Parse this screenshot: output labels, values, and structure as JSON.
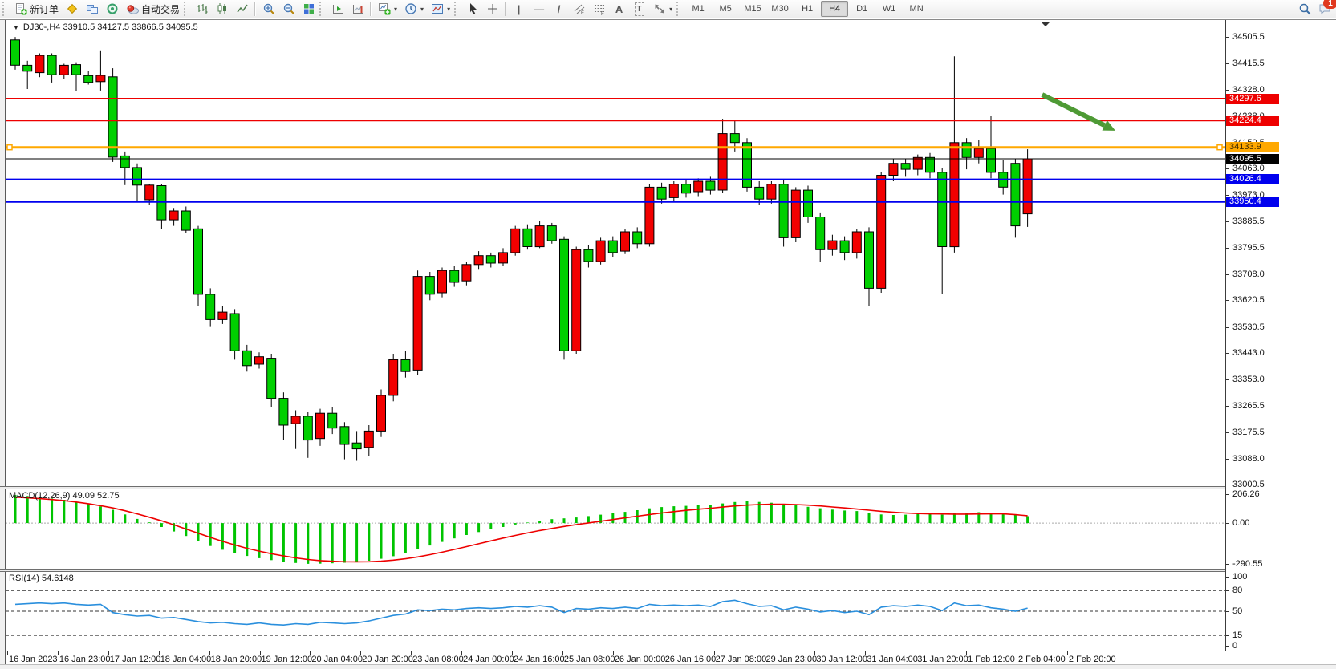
{
  "toolbar": {
    "badge": "1",
    "timeframes": [
      "M1",
      "M5",
      "M15",
      "M30",
      "H1",
      "H4",
      "D1",
      "W1",
      "MN"
    ],
    "active_timeframe": "H4",
    "items": [
      {
        "type": "grip"
      },
      {
        "type": "button",
        "name": "new-order-button",
        "icon": "new-order",
        "label": "新订单"
      },
      {
        "type": "button",
        "name": "market-watch-button",
        "icon": "market-watch"
      },
      {
        "type": "button",
        "name": "navigator-button",
        "icon": "navigator"
      },
      {
        "type": "button",
        "name": "strategy-tester-button",
        "icon": "tester"
      },
      {
        "type": "button",
        "name": "auto-trading-button",
        "icon": "auto-trading",
        "label": "自动交易"
      },
      {
        "type": "grip"
      },
      {
        "type": "button",
        "name": "bar-chart-button",
        "icon": "bars"
      },
      {
        "type": "button",
        "name": "candlestick-chart-button",
        "icon": "candles"
      },
      {
        "type": "button",
        "name": "line-chart-button",
        "icon": "line"
      },
      {
        "type": "sep"
      },
      {
        "type": "button",
        "name": "zoom-in-button",
        "icon": "zoom-in"
      },
      {
        "type": "button",
        "name": "zoom-out-button",
        "icon": "zoom-out"
      },
      {
        "type": "button",
        "name": "tile-windows-button",
        "icon": "tile"
      },
      {
        "type": "grip"
      },
      {
        "type": "button",
        "name": "auto-scroll-button",
        "icon": "autoscroll"
      },
      {
        "type": "button",
        "name": "chart-shift-button",
        "icon": "chartshift"
      },
      {
        "type": "sep"
      },
      {
        "type": "button",
        "name": "new-chart-button",
        "icon": "new-chart",
        "caret": true
      },
      {
        "type": "button",
        "name": "periods-button",
        "icon": "periods",
        "caret": true
      },
      {
        "type": "button",
        "name": "templates-button",
        "icon": "templates",
        "caret": true
      },
      {
        "type": "grip"
      },
      {
        "type": "button",
        "name": "cursor-button",
        "icon": "cursor"
      },
      {
        "type": "button",
        "name": "crosshair-button",
        "icon": "crosshair"
      },
      {
        "type": "sep"
      },
      {
        "type": "button",
        "name": "vertical-line-button",
        "icon": "vline"
      },
      {
        "type": "button",
        "name": "horizontal-line-button",
        "icon": "hline"
      },
      {
        "type": "button",
        "name": "trendline-button",
        "icon": "trendline"
      },
      {
        "type": "button",
        "name": "equidistant-channel-button",
        "icon": "channel"
      },
      {
        "type": "button",
        "name": "fibonacci-button",
        "icon": "fibo"
      },
      {
        "type": "button",
        "name": "text-button",
        "icon": "text"
      },
      {
        "type": "button",
        "name": "text-label-button",
        "icon": "label"
      },
      {
        "type": "button",
        "name": "arrows-button",
        "icon": "arrows",
        "caret": true
      },
      {
        "type": "grip"
      },
      {
        "type": "timeframes"
      },
      {
        "type": "spacer"
      },
      {
        "type": "button",
        "name": "search-button",
        "icon": "search"
      },
      {
        "type": "button",
        "name": "chat-button",
        "icon": "chat",
        "badge": "1"
      }
    ]
  },
  "chart_data": {
    "type": "candlestick+indicators",
    "symbol_title": "DJ30-,H4  33910.5 34127.5 33866.5 34095.5",
    "dropdown_icon": "▼",
    "bull_color": "#f20000",
    "bear_color": "#00d000",
    "wick_color": "#000000",
    "layout": {
      "bar_start": 12,
      "bar_step": 15.2,
      "body_width": 11,
      "time_x_start": 2,
      "time_x_step": 62.9
    },
    "price_axis": {
      "view_max": 34562,
      "view_min": 32995,
      "ticks": [
        34505.5,
        34415.5,
        34328.0,
        34238.0,
        34150.5,
        34063.0,
        33973.0,
        33885.5,
        33795.5,
        33708.0,
        33620.5,
        33530.5,
        33443.0,
        33353.0,
        33265.5,
        33175.5,
        33088.0,
        33000.5
      ]
    },
    "hlines": [
      {
        "price": 34297.6,
        "color": "#ee0000",
        "width": 2,
        "tag_bg": "#ee0000",
        "tag_fg": "#ffffff"
      },
      {
        "price": 34224.4,
        "color": "#ee0000",
        "width": 2,
        "tag_bg": "#ee0000",
        "tag_fg": "#ffffff"
      },
      {
        "price": 34133.9,
        "color": "#ffa800",
        "width": 3,
        "tag_bg": "#ffa800",
        "tag_fg": "#402c00",
        "handles": true
      },
      {
        "price": 34095.5,
        "color": "#000000",
        "width": 1,
        "tag_bg": "#000000",
        "tag_fg": "#ffffff"
      },
      {
        "price": 34026.4,
        "color": "#0000ee",
        "width": 2,
        "tag_bg": "#0000ee",
        "tag_fg": "#ffffff"
      },
      {
        "price": 33950.4,
        "color": "#0000ee",
        "width": 2,
        "tag_bg": "#0000ee",
        "tag_fg": "#ffffff"
      }
    ],
    "trend_arrow": {
      "from_bar": 84.2,
      "from_price": 34311,
      "to_bar": 90.2,
      "to_price": 34190,
      "color": "#4e9a35",
      "width": 6
    },
    "candles": [
      [
        34495,
        34505,
        34395,
        34410
      ],
      [
        34410,
        34425,
        34330,
        34390
      ],
      [
        34385,
        34450,
        34370,
        34443
      ],
      [
        34443,
        34450,
        34352,
        34378
      ],
      [
        34378,
        34415,
        34365,
        34410
      ],
      [
        34412,
        34420,
        34322,
        34378
      ],
      [
        34375,
        34390,
        34345,
        34352
      ],
      [
        34355,
        34460,
        34325,
        34376
      ],
      [
        34371,
        34400,
        34085,
        34101
      ],
      [
        34105,
        34120,
        34007,
        34066
      ],
      [
        34066,
        34080,
        33953,
        34007
      ],
      [
        33958,
        34010,
        33940,
        34007
      ],
      [
        34005,
        34010,
        33860,
        33890
      ],
      [
        33890,
        33930,
        33870,
        33920
      ],
      [
        33920,
        33935,
        33845,
        33855
      ],
      [
        33860,
        33870,
        33600,
        33640
      ],
      [
        33640,
        33660,
        33530,
        33555
      ],
      [
        33555,
        33600,
        33540,
        33580
      ],
      [
        33575,
        33590,
        33420,
        33450
      ],
      [
        33450,
        33470,
        33380,
        33400
      ],
      [
        33405,
        33445,
        33390,
        33430
      ],
      [
        33425,
        33440,
        33260,
        33290
      ],
      [
        33290,
        33310,
        33150,
        33200
      ],
      [
        33205,
        33250,
        33120,
        33230
      ],
      [
        33230,
        33245,
        33090,
        33150
      ],
      [
        33155,
        33255,
        33130,
        33240
      ],
      [
        33240,
        33260,
        33170,
        33190
      ],
      [
        33195,
        33210,
        33085,
        33135
      ],
      [
        33140,
        33180,
        33080,
        33120
      ],
      [
        33125,
        33200,
        33095,
        33180
      ],
      [
        33180,
        33320,
        33160,
        33300
      ],
      [
        33300,
        33440,
        33280,
        33420
      ],
      [
        33420,
        33450,
        33360,
        33380
      ],
      [
        33385,
        33720,
        33370,
        33700
      ],
      [
        33700,
        33715,
        33620,
        33640
      ],
      [
        33645,
        33730,
        33630,
        33720
      ],
      [
        33720,
        33735,
        33665,
        33680
      ],
      [
        33685,
        33750,
        33670,
        33740
      ],
      [
        33740,
        33785,
        33725,
        33770
      ],
      [
        33770,
        33780,
        33730,
        33745
      ],
      [
        33745,
        33795,
        33735,
        33780
      ],
      [
        33780,
        33870,
        33770,
        33860
      ],
      [
        33860,
        33875,
        33790,
        33800
      ],
      [
        33800,
        33885,
        33795,
        33870
      ],
      [
        33870,
        33880,
        33810,
        33820
      ],
      [
        33825,
        33835,
        33420,
        33450
      ],
      [
        33450,
        33800,
        33440,
        33790
      ],
      [
        33790,
        33805,
        33730,
        33750
      ],
      [
        33750,
        33830,
        33740,
        33820
      ],
      [
        33820,
        33835,
        33765,
        33780
      ],
      [
        33785,
        33860,
        33775,
        33850
      ],
      [
        33850,
        33865,
        33795,
        33810
      ],
      [
        33810,
        34010,
        33800,
        34000
      ],
      [
        34000,
        34015,
        33945,
        33960
      ],
      [
        33965,
        34020,
        33950,
        34010
      ],
      [
        34010,
        34025,
        33965,
        33980
      ],
      [
        33985,
        34030,
        33970,
        34020
      ],
      [
        34020,
        34035,
        33975,
        33990
      ],
      [
        33990,
        34230,
        33980,
        34180
      ],
      [
        34180,
        34225,
        34120,
        34150
      ],
      [
        34150,
        34165,
        33985,
        34000
      ],
      [
        34000,
        34020,
        33940,
        33960
      ],
      [
        33960,
        34020,
        33945,
        34010
      ],
      [
        34010,
        34025,
        33800,
        33830
      ],
      [
        33830,
        34000,
        33815,
        33990
      ],
      [
        33990,
        34005,
        33880,
        33900
      ],
      [
        33900,
        33915,
        33750,
        33790
      ],
      [
        33790,
        33840,
        33770,
        33820
      ],
      [
        33820,
        33835,
        33755,
        33780
      ],
      [
        33780,
        33860,
        33760,
        33850
      ],
      [
        33850,
        33865,
        33600,
        33660
      ],
      [
        33660,
        34050,
        33645,
        34040
      ],
      [
        34040,
        34095,
        34020,
        34080
      ],
      [
        34080,
        34095,
        34035,
        34060
      ],
      [
        34060,
        34110,
        34040,
        34100
      ],
      [
        34100,
        34115,
        34030,
        34050
      ],
      [
        34050,
        34065,
        33640,
        33800
      ],
      [
        33800,
        34440,
        33780,
        34150
      ],
      [
        34150,
        34165,
        34060,
        34100
      ],
      [
        34100,
        34160,
        34080,
        34130
      ],
      [
        34130,
        34240,
        34030,
        34050
      ],
      [
        34050,
        34090,
        33975,
        34000
      ],
      [
        34080,
        34095,
        33830,
        33870
      ],
      [
        33910.5,
        34127.5,
        33866.5,
        34095.5
      ]
    ],
    "macd": {
      "label": "MACD(12,26,9) 49.09 52.75",
      "view_max": 240.5,
      "view_min": -324.9,
      "axis_ticks": [
        206.26,
        0,
        -290.55
      ],
      "hist_color": "#00c400",
      "signal_color": "#ee0000",
      "hist": [
        200,
        193,
        185,
        176,
        166,
        152,
        136,
        119,
        95,
        62,
        30,
        5,
        -28,
        -60,
        -92,
        -130,
        -163,
        -190,
        -214,
        -234,
        -250,
        -264,
        -276,
        -284,
        -290,
        -289,
        -286,
        -282,
        -277,
        -268,
        -254,
        -236,
        -214,
        -186,
        -160,
        -134,
        -109,
        -85,
        -64,
        -45,
        -28,
        -10,
        4,
        18,
        28,
        34,
        40,
        50,
        60,
        70,
        80,
        92,
        105,
        114,
        120,
        123,
        126,
        129,
        140,
        150,
        155,
        151,
        145,
        135,
        126,
        116,
        106,
        96,
        90,
        86,
        72,
        62,
        58,
        60,
        64,
        67,
        60,
        70,
        75,
        78,
        75,
        70,
        62,
        49.09
      ],
      "signal": [
        185,
        180,
        174,
        168,
        160,
        150,
        138,
        124,
        108,
        88,
        66,
        42,
        16,
        -12,
        -42,
        -72,
        -102,
        -130,
        -156,
        -180,
        -200,
        -218,
        -234,
        -248,
        -259,
        -267,
        -272,
        -275,
        -276,
        -275,
        -271,
        -264,
        -254,
        -241,
        -225,
        -207,
        -188,
        -168,
        -147,
        -127,
        -107,
        -88,
        -70,
        -53,
        -38,
        -24,
        -11,
        1,
        13,
        25,
        37,
        49,
        61,
        72,
        82,
        91,
        99,
        106,
        114,
        122,
        128,
        132,
        134,
        134,
        132,
        128,
        122,
        115,
        108,
        100,
        92,
        84,
        77,
        72,
        68,
        66,
        65,
        64,
        64,
        65,
        66,
        66,
        60,
        52.75
      ]
    },
    "rsi": {
      "label": "RSI(14) 54.6148",
      "view_max": 107,
      "view_min": -6.95,
      "axis_ticks": [
        100,
        80,
        50,
        15,
        0
      ],
      "levels": [
        80,
        50,
        15
      ],
      "line_color": "#2a8fdd",
      "values": [
        60,
        61,
        62,
        61,
        62,
        60,
        59,
        60,
        48,
        45,
        43,
        44,
        40,
        41,
        38,
        35,
        33,
        34,
        32,
        31,
        33,
        31,
        30,
        32,
        31,
        34,
        33,
        32,
        33,
        36,
        40,
        44,
        46,
        52,
        51,
        53,
        52,
        54,
        55,
        54,
        55,
        57,
        56,
        58,
        56,
        48,
        54,
        53,
        55,
        54,
        56,
        54,
        60,
        58,
        59,
        58,
        59,
        57,
        64,
        66,
        61,
        57,
        58,
        52,
        56,
        53,
        49,
        51,
        48,
        50,
        45,
        56,
        58,
        57,
        59,
        57,
        51,
        62,
        58,
        59,
        55,
        53,
        50,
        54.61
      ]
    },
    "x_labels": [
      "16 Jan 2023",
      "16 Jan 23:00",
      "17 Jan 12:00",
      "18 Jan 04:00",
      "18 Jan 20:00",
      "19 Jan 12:00",
      "20 Jan 04:00",
      "20 Jan 20:00",
      "23 Jan 08:00",
      "24 Jan 00:00",
      "24 Jan 16:00",
      "25 Jan 08:00",
      "26 Jan 00:00",
      "26 Jan 16:00",
      "27 Jan 08:00",
      "29 Jan 23:00",
      "30 Jan 12:00",
      "31 Jan 04:00",
      "31 Jan 20:00",
      "1 Feb 12:00",
      "2 Feb 04:00",
      "2 Feb 20:00"
    ]
  }
}
